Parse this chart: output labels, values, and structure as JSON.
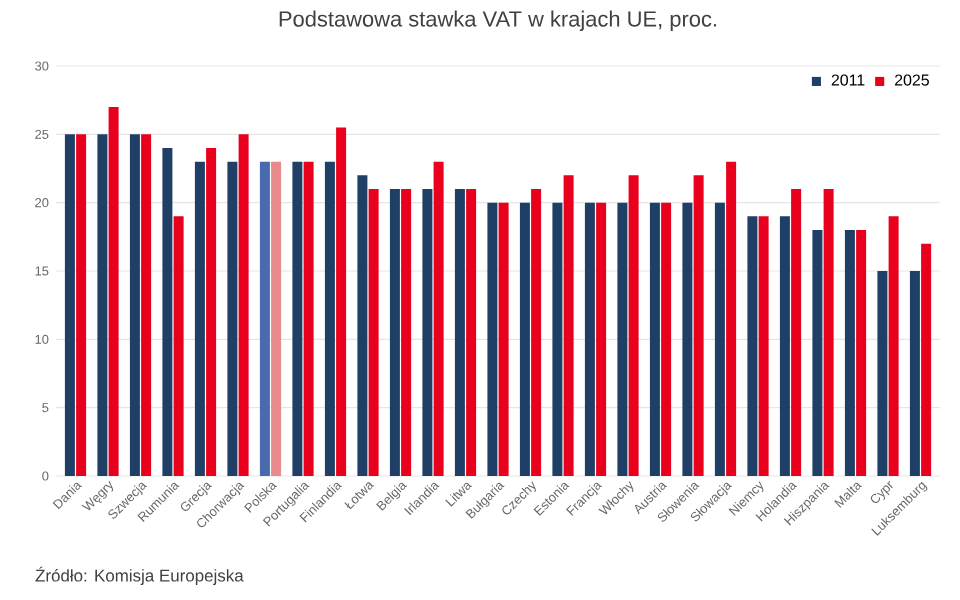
{
  "chart_data": {
    "type": "bar",
    "title": "Podstawowa stawka VAT w krajach UE, proc.",
    "categories": [
      "Dania",
      "Węgry",
      "Szwecja",
      "Rumunia",
      "Grecja",
      "Chorwacja",
      "Polska",
      "Portugalia",
      "Finlandia",
      "Łotwa",
      "Belgia",
      "Irlandia",
      "Litwa",
      "Bułgaria",
      "Czechy",
      "Estonia",
      "Francja",
      "Włochy",
      "Austria",
      "Słowenia",
      "Słowacja",
      "Niemcy",
      "Holandia",
      "Hiszpania",
      "Malta",
      "Cypr",
      "Luksemburg"
    ],
    "series": [
      {
        "name": "2011",
        "color": "#1f3f66",
        "colors": [
          "#1f3f66",
          "#1f3f66",
          "#1f3f66",
          "#1f3f66",
          "#1f3f66",
          "#1f3f66",
          "#4a6aae",
          "#1f3f66",
          "#1f3f66",
          "#1f3f66",
          "#1f3f66",
          "#1f3f66",
          "#1f3f66",
          "#1f3f66",
          "#1f3f66",
          "#1f3f66",
          "#1f3f66",
          "#1f3f66",
          "#1f3f66",
          "#1f3f66",
          "#1f3f66",
          "#1f3f66",
          "#1f3f66",
          "#1f3f66",
          "#1f3f66",
          "#1f3f66",
          "#1f3f66"
        ],
        "values": [
          25,
          25,
          25,
          24,
          23,
          23,
          23,
          23,
          23,
          22,
          21,
          21,
          21,
          20,
          20,
          20,
          20,
          20,
          20,
          20,
          20,
          19,
          19,
          18,
          18,
          15,
          15
        ]
      },
      {
        "name": "2025",
        "color": "#e8001c",
        "colors": [
          "#e8001c",
          "#e8001c",
          "#e8001c",
          "#e8001c",
          "#e8001c",
          "#e8001c",
          "#e98a8c",
          "#e8001c",
          "#e8001c",
          "#e8001c",
          "#e8001c",
          "#e8001c",
          "#e8001c",
          "#e8001c",
          "#e8001c",
          "#e8001c",
          "#e8001c",
          "#e8001c",
          "#e8001c",
          "#e8001c",
          "#e8001c",
          "#e8001c",
          "#e8001c",
          "#e8001c",
          "#e8001c",
          "#e8001c",
          "#e8001c"
        ],
        "values": [
          25,
          27,
          25,
          19,
          24,
          25,
          23,
          23,
          25.5,
          21,
          21,
          23,
          21,
          20,
          21,
          22,
          20,
          22,
          20,
          22,
          23,
          19,
          21,
          21,
          18,
          19,
          17
        ]
      }
    ],
    "ylim": [
      0,
      30
    ],
    "yticks": [
      0,
      5,
      10,
      15,
      20,
      25,
      30
    ],
    "grid": "y",
    "legend": "top right",
    "annotations": [
      "Źródło: Komisja Europejska"
    ]
  }
}
